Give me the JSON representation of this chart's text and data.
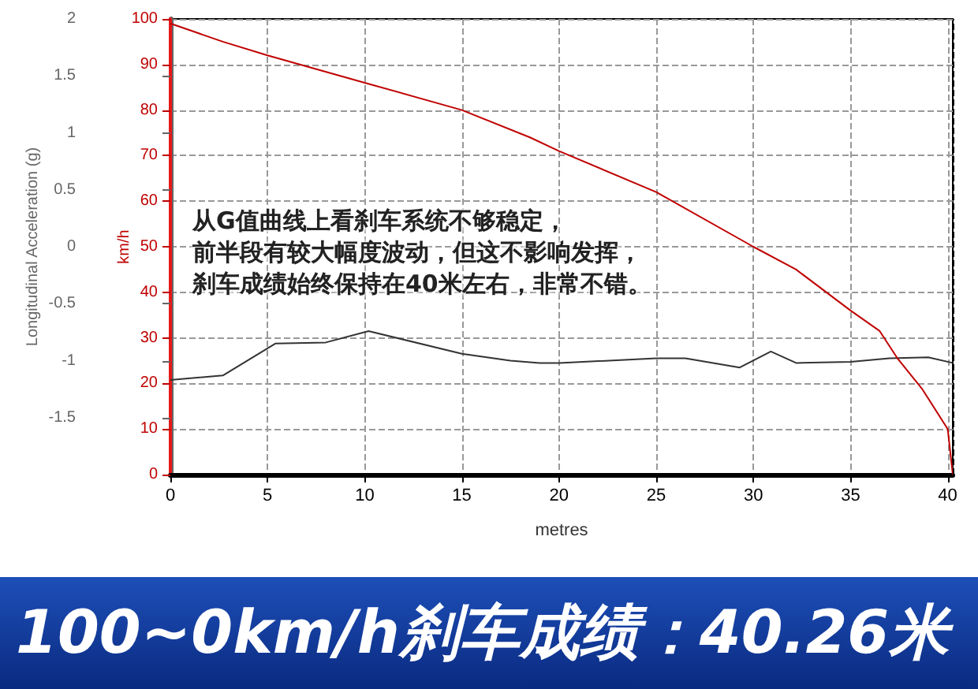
{
  "chart_data": {
    "type": "line",
    "title": "100~0km/h刹车成绩：40.26米",
    "xlabel": "metres",
    "ylabel": "Longitudinal Acceleration (g)",
    "y2label": "km/h",
    "annotations": [
      "从G值曲线上看刹车系统不够稳定，",
      "前半段有较大幅度波动，但这不影响发挥，",
      "刹车成绩始终保持在40米左右，非常不错。"
    ],
    "series": [
      {
        "color": "#333333",
        "axis": "y",
        "x": [
          0,
          2.7,
          5.4,
          8,
          10.2,
          15,
          17.5,
          19,
          20,
          25,
          26.5,
          29.3,
          30.9,
          32.2,
          35,
          37,
          39,
          40.26
        ],
        "values": [
          -1.17,
          -1.13,
          -0.85,
          -0.84,
          -0.74,
          -0.94,
          -1.0,
          -1.02,
          -1.02,
          -0.98,
          -0.98,
          -1.06,
          -0.92,
          -1.02,
          -1.01,
          -0.98,
          -0.97,
          -1.02
        ]
      },
      {
        "color": "#c00000",
        "axis": "y2",
        "x": [
          0,
          2.7,
          5,
          10,
          15,
          18.5,
          20,
          25,
          30,
          32.2,
          35,
          36.5,
          37.4,
          38.7,
          40,
          40.26
        ],
        "values": [
          99,
          95,
          92,
          86,
          80,
          74,
          71,
          62,
          50,
          45,
          36,
          31.5,
          25.6,
          18.7,
          10,
          0
        ]
      }
    ],
    "xlim": [
      0,
      40.26
    ],
    "xticks": [
      0,
      5,
      10,
      15,
      20,
      25,
      30,
      35,
      40
    ],
    "ylim": [
      -2,
      2
    ],
    "yticks": [
      -1.5,
      -1,
      -0.5,
      0,
      0.5,
      1,
      1.5,
      2
    ],
    "y2lim": [
      0,
      100
    ],
    "y2ticks": [
      0,
      10,
      20,
      30,
      40,
      50,
      60,
      70,
      80,
      90,
      100
    ],
    "ref_lines": [
      {
        "axis": "x",
        "value": 40.26,
        "color": "#000000",
        "line_style": "dashed"
      }
    ],
    "grid": true,
    "marker": "none",
    "line_style": "solid"
  }
}
